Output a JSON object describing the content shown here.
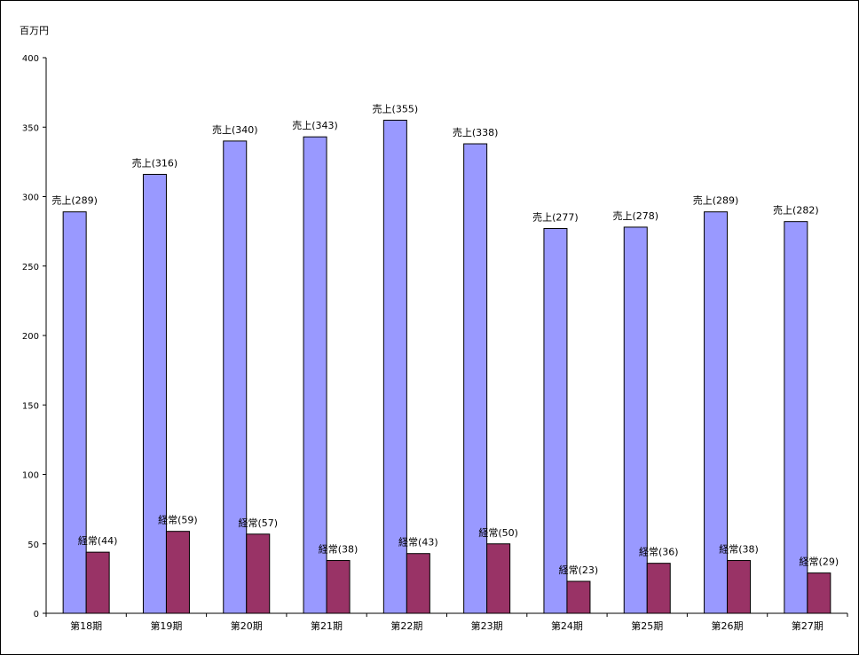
{
  "chart_data": {
    "type": "bar",
    "unit_label": "百万円",
    "categories": [
      "第18期",
      "第19期",
      "第20期",
      "第21期",
      "第22期",
      "第23期",
      "第24期",
      "第25期",
      "第26期",
      "第27期"
    ],
    "series": [
      {
        "name": "売上",
        "color": "#9999ff",
        "values": [
          289,
          316,
          340,
          343,
          355,
          338,
          277,
          278,
          289,
          282
        ],
        "labels": [
          "売上(289)",
          "売上(316)",
          "売上(340)",
          "売上(343)",
          "売上(355)",
          "売上(338)",
          "売上(277)",
          "売上(278)",
          "売上(289)",
          "売上(282)"
        ]
      },
      {
        "name": "経常",
        "color": "#993366",
        "values": [
          44,
          59,
          57,
          38,
          43,
          50,
          23,
          36,
          38,
          29
        ],
        "labels": [
          "経常(44)",
          "経常(59)",
          "経常(57)",
          "経常(38)",
          "経常(43)",
          "経常(50)",
          "経常(23)",
          "経常(36)",
          "経常(38)",
          "経常(29)"
        ]
      }
    ],
    "ylim": [
      0,
      400
    ],
    "yticks": [
      0,
      50,
      100,
      150,
      200,
      250,
      300,
      350,
      400
    ],
    "grid": false,
    "legend": "none"
  }
}
